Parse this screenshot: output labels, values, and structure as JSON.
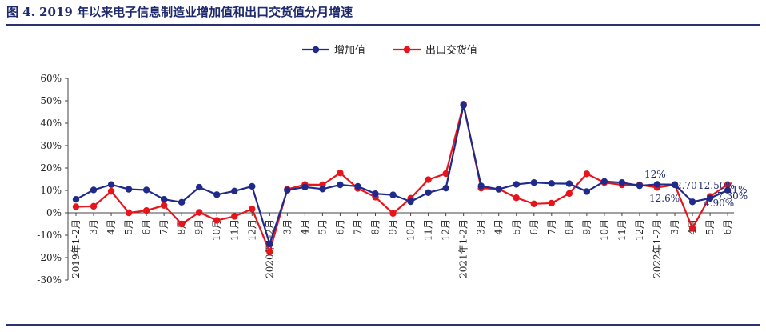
{
  "figure": {
    "title": "图 4. 2019 年以来电子信息制造业增加值和出口交货值分月增速"
  },
  "chart_data": {
    "type": "line",
    "categories": [
      "2019年1-2月",
      "3月",
      "4月",
      "5月",
      "6月",
      "7月",
      "8月",
      "9月",
      "10月",
      "11月",
      "12月",
      "2020年1-2月",
      "3月",
      "4月",
      "5月",
      "6月",
      "7月",
      "8月",
      "9月",
      "10月",
      "11月",
      "12月",
      "2021年1-2月",
      "3月",
      "4月",
      "5月",
      "6月",
      "7月",
      "8月",
      "9月",
      "10月",
      "11月",
      "12月",
      "2022年1-2月",
      "3月",
      "4月",
      "5月",
      "6月"
    ],
    "series": [
      {
        "name": "增加值",
        "color": "#1f2a8a",
        "values": [
          6,
          10.2,
          12.6,
          10.5,
          10.2,
          6,
          4.7,
          11.4,
          8.1,
          9.7,
          11.8,
          -13.9,
          10.1,
          11.5,
          10.6,
          12.5,
          11.8,
          8.5,
          8,
          5,
          9,
          11,
          48,
          12,
          10.5,
          12.7,
          13.5,
          13.1,
          13,
          9.5,
          14,
          13.5,
          12.1,
          12.7,
          12.6,
          4.9,
          6.5,
          10.1
        ]
      },
      {
        "name": "出口交货值",
        "color": "#e8141b",
        "values": [
          2.7,
          2.9,
          9.6,
          0,
          1,
          3.3,
          -5,
          0.2,
          -3.4,
          -1.6,
          1.7,
          -17.4,
          10.5,
          12.6,
          12.5,
          17.8,
          10.9,
          7,
          -0.3,
          6.5,
          14.8,
          17.5,
          48.5,
          11,
          10.6,
          6.7,
          4,
          4.3,
          8.6,
          17.4,
          13.5,
          12.5,
          12.5,
          11.3,
          12.5,
          -6.9,
          7.3,
          12.6
        ]
      }
    ],
    "ylim": [
      -30,
      60
    ],
    "yticks": [
      -30,
      -20,
      -10,
      0,
      10,
      20,
      30,
      40,
      50,
      60
    ],
    "ytick_labels": [
      "-30%",
      "-20%",
      "-10%",
      "0%",
      "10%",
      "20%",
      "30%",
      "40%",
      "50%",
      "60%"
    ],
    "legend": "top-center",
    "annotations": [
      "12%",
      "12.6%",
      "2.70",
      "12.50%",
      "4.90%",
      "7.30%",
      "7.1%"
    ]
  }
}
